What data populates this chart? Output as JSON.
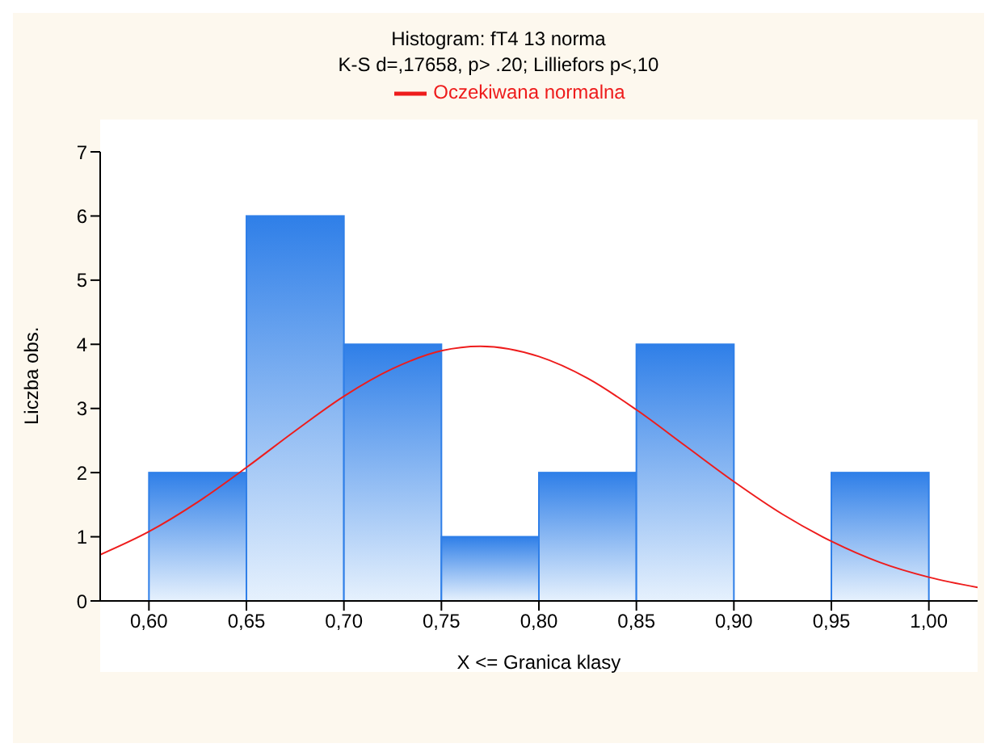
{
  "chart_data": {
    "type": "histogram",
    "title": "Histogram: fT4 13 norma",
    "subtitle": "K-S d=,17658, p> .20; Lilliefors p<,10",
    "xlabel": "X <= Granica klasy",
    "ylabel": "Liczba obs.",
    "bins": [
      0.6,
      0.65,
      0.7,
      0.75,
      0.8,
      0.85,
      0.9,
      0.95,
      1.0
    ],
    "values": [
      2,
      6,
      4,
      1,
      2,
      4,
      0,
      2
    ],
    "color": "#2f7fe8",
    "series": [
      {
        "type": "line",
        "name": "Oczekiwana normalna",
        "color": "#ee1c1c",
        "x": [
          0.575,
          0.6,
          0.625,
          0.65,
          0.675,
          0.7,
          0.725,
          0.75,
          0.77,
          0.8,
          0.825,
          0.85,
          0.875,
          0.9,
          0.925,
          0.95,
          0.975,
          1.0,
          1.025
        ],
        "values": [
          0.72,
          1.08,
          1.54,
          2.08,
          2.65,
          3.19,
          3.62,
          3.9,
          3.97,
          3.81,
          3.47,
          2.98,
          2.42,
          1.86,
          1.35,
          0.93,
          0.6,
          0.37,
          0.21
        ]
      }
    ],
    "xlim": [
      0.575,
      1.025
    ],
    "xticks": [
      {
        "value": 0.6,
        "label": "0,60"
      },
      {
        "value": 0.65,
        "label": "0,65"
      },
      {
        "value": 0.7,
        "label": "0,70"
      },
      {
        "value": 0.75,
        "label": "0,75"
      },
      {
        "value": 0.8,
        "label": "0,80"
      },
      {
        "value": 0.85,
        "label": "0,85"
      },
      {
        "value": 0.9,
        "label": "0,90"
      },
      {
        "value": 0.95,
        "label": "0,95"
      },
      {
        "value": 1.0,
        "label": "1,00"
      }
    ],
    "ylim": [
      0,
      7
    ],
    "yticks": [
      0,
      1,
      2,
      3,
      4,
      5,
      6,
      7
    ],
    "legend": "top",
    "grid": false,
    "marker": "none"
  }
}
